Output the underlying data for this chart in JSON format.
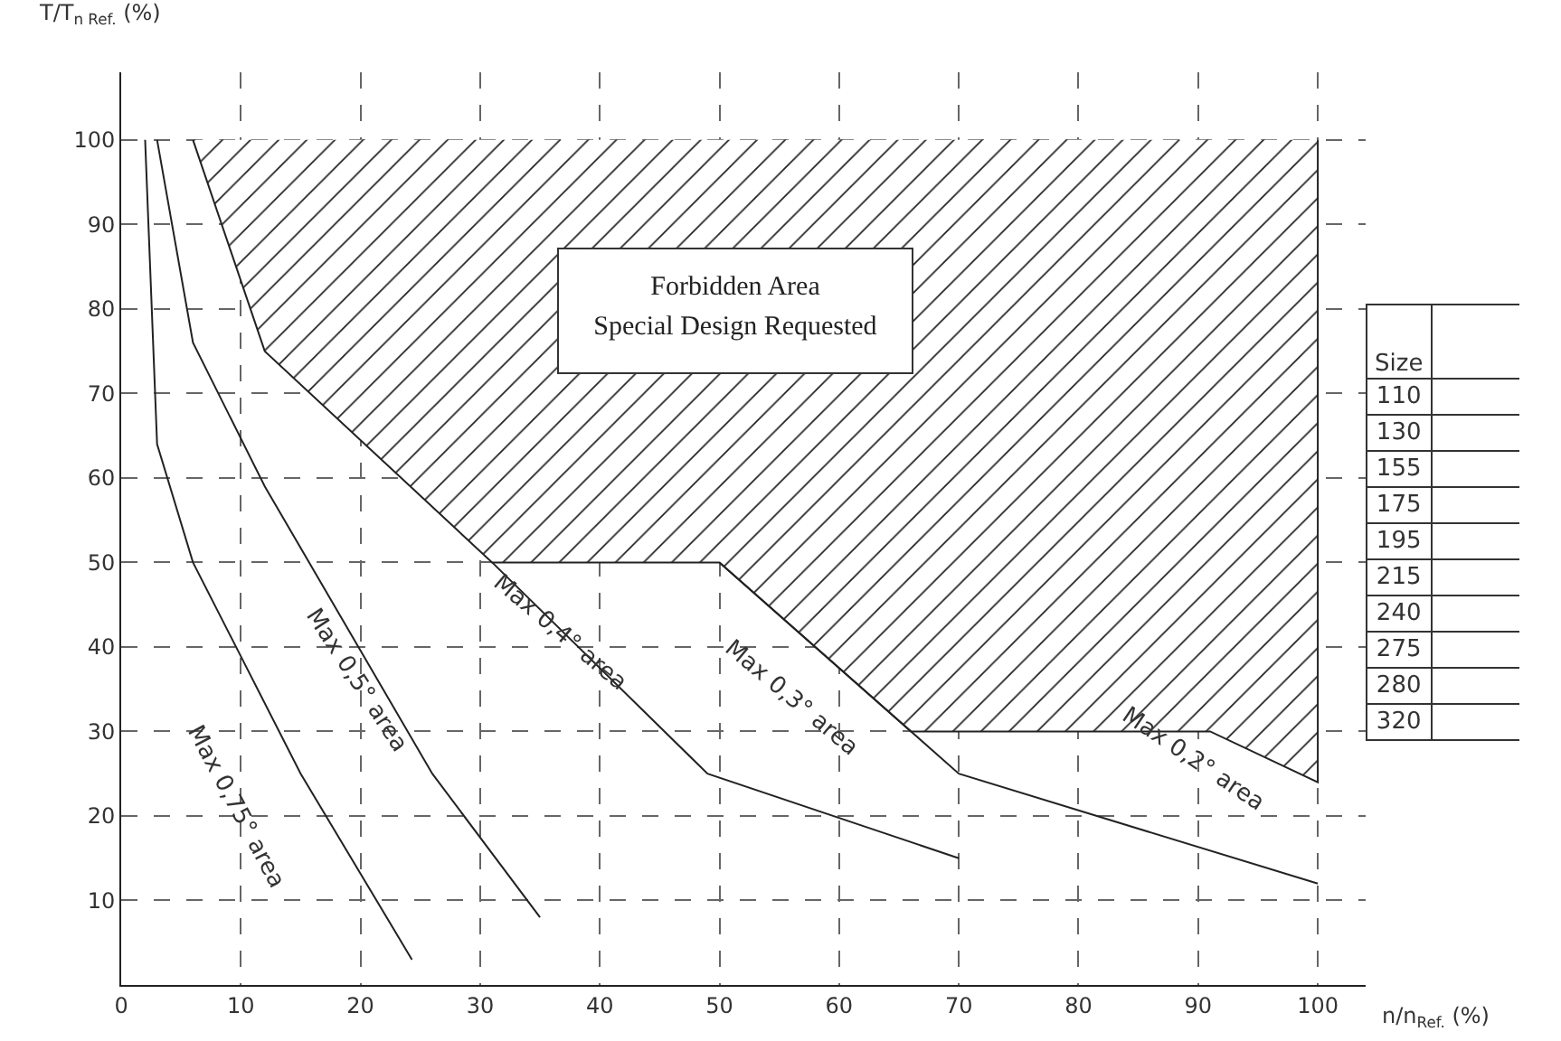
{
  "chart_data": {
    "type": "line",
    "xlabel": "n/n$_{Ref.}$ (%)",
    "ylabel": "T/T$_{n Ref.}$ (%)",
    "xlim": [
      0,
      104
    ],
    "ylim": [
      0,
      108
    ],
    "xticks": [
      0,
      10,
      20,
      30,
      40,
      50,
      60,
      70,
      80,
      90,
      100
    ],
    "yticks": [
      10,
      20,
      30,
      40,
      50,
      60,
      70,
      80,
      90,
      100
    ],
    "grid": true,
    "line_style": "solid",
    "series": [
      {
        "type": "area",
        "color": "#222222",
        "x": [
          6,
          12,
          31,
          50,
          66,
          91,
          100,
          100
        ],
        "values": [
          100,
          75,
          50,
          50,
          30,
          30,
          24,
          100
        ]
      },
      {
        "color": "#222222",
        "x": [
          2,
          3,
          6,
          15,
          24.3
        ],
        "values": [
          100,
          64,
          50,
          25,
          3
        ]
      },
      {
        "color": "#222222",
        "x": [
          3,
          6,
          12,
          26,
          35
        ],
        "values": [
          100,
          76,
          59,
          25,
          8
        ]
      },
      {
        "color": "#222222",
        "x": [
          31,
          49,
          70
        ],
        "values": [
          50,
          25,
          15
        ]
      },
      {
        "color": "#222222",
        "x": [
          50,
          70,
          100
        ],
        "values": [
          50,
          25,
          12
        ]
      }
    ],
    "annotations": [
      "Forbidden Area",
      "Special Design Requested",
      "Max 0,75° area",
      "Max 0,5° area",
      "Max 0,4° area",
      "Max 0,3° area",
      "Max 0,2° area",
      "Size",
      "110",
      "130",
      "155",
      "175",
      "195",
      "215",
      "240",
      "275",
      "280",
      "320"
    ]
  }
}
